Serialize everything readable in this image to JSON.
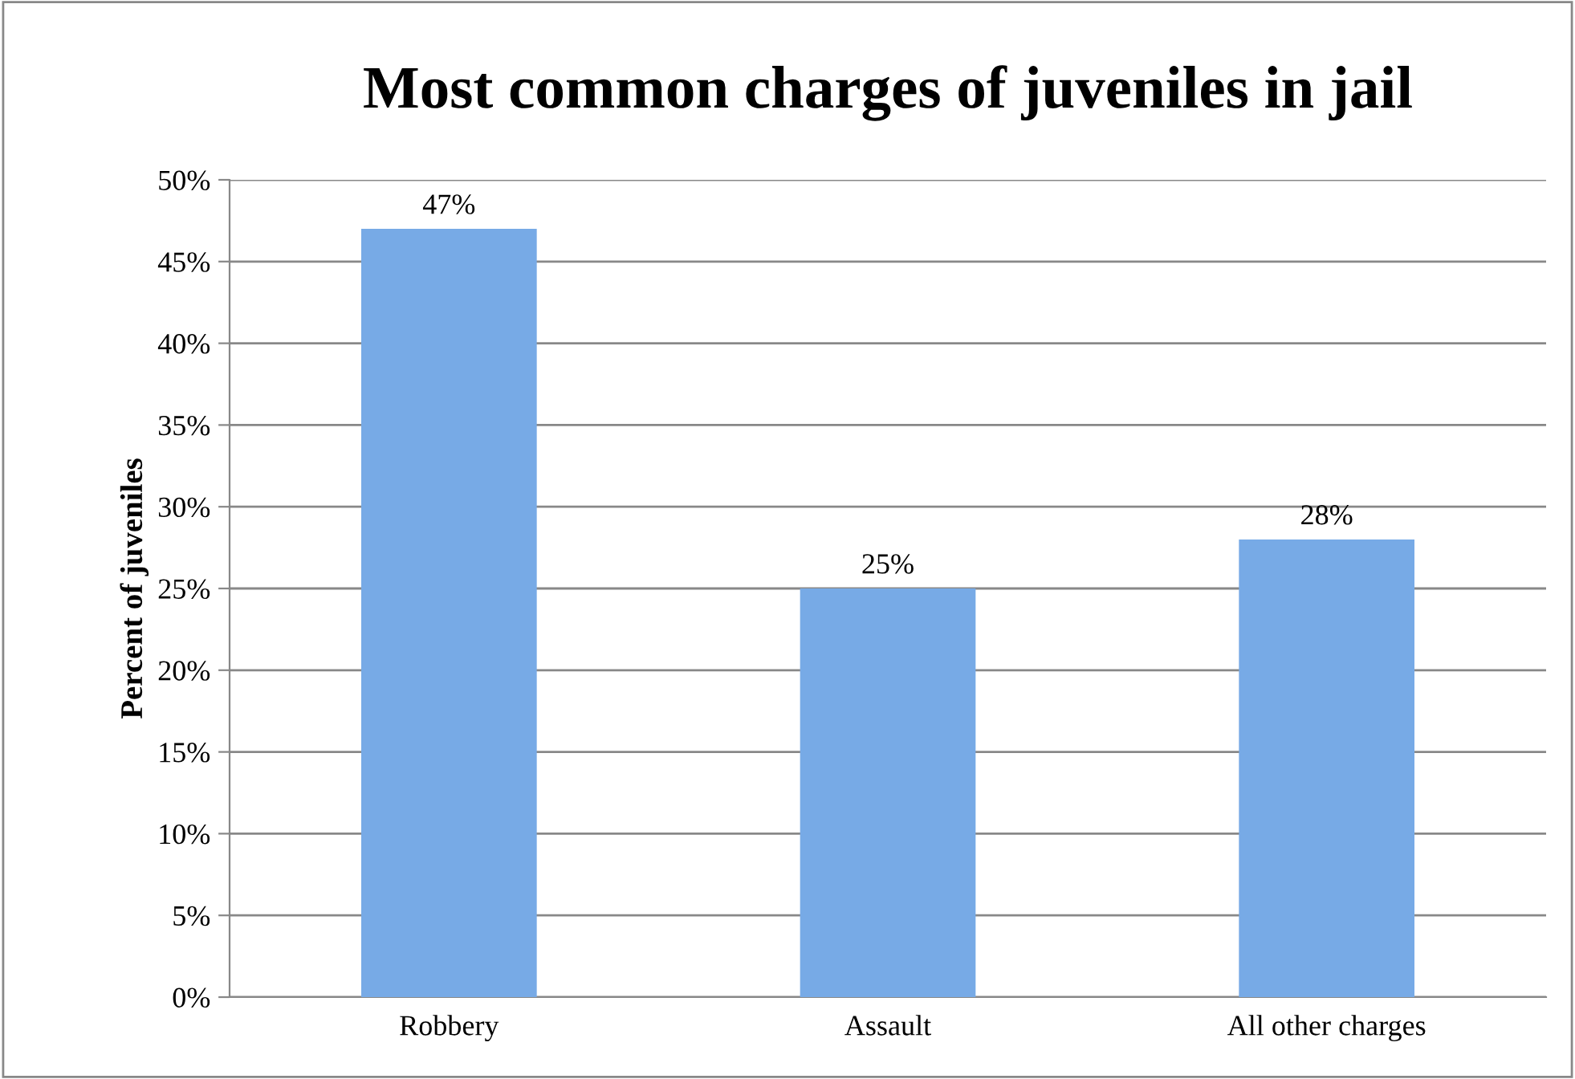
{
  "chart_data": {
    "type": "bar",
    "title": "Most common charges of juveniles in jail",
    "ylabel": "Percent of juveniles",
    "categories": [
      "Robbery",
      "Assault",
      "All other charges"
    ],
    "values": [
      47,
      25,
      28
    ],
    "color": "#77aae6",
    "ylim": [
      0,
      50
    ],
    "yticks": [
      {
        "value": 0,
        "label": "0%"
      },
      {
        "value": 5,
        "label": "5%"
      },
      {
        "value": 10,
        "label": "10%"
      },
      {
        "value": 15,
        "label": "15%"
      },
      {
        "value": 20,
        "label": "20%"
      },
      {
        "value": 25,
        "label": "25%"
      },
      {
        "value": 30,
        "label": "30%"
      },
      {
        "value": 35,
        "label": "35%"
      },
      {
        "value": 40,
        "label": "40%"
      },
      {
        "value": 45,
        "label": "45%"
      },
      {
        "value": 50,
        "label": "50%"
      }
    ],
    "value_labels": [
      "47%",
      "25%",
      "28%"
    ],
    "grid": "y",
    "legend": false
  }
}
